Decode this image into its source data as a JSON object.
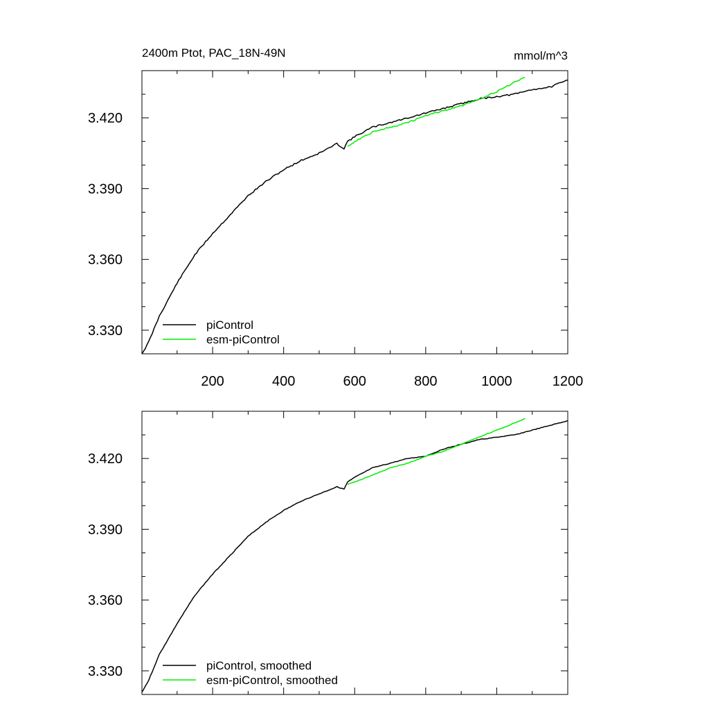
{
  "figure": {
    "title": "2400m Ptot, PAC_18N-49N",
    "units": "mmol/m^3",
    "colors": {
      "piControl": "#000000",
      "esm-piControl": "#00ee00"
    }
  },
  "chart_data": [
    {
      "type": "line",
      "title": "2400m Ptot, PAC_18N-49N",
      "units_label": "mmol/m^3",
      "xlabel": "",
      "ylabel": "",
      "xlim": [
        1,
        1200
      ],
      "ylim": [
        3.32,
        3.44
      ],
      "x_ticks": [
        200,
        400,
        600,
        800,
        1000,
        1200
      ],
      "x_tick_labels": [
        "200",
        "400",
        "600",
        "800",
        "1000",
        "1200"
      ],
      "y_ticks": [
        3.33,
        3.36,
        3.39,
        3.42
      ],
      "y_tick_labels": [
        "3.330",
        "3.360",
        "3.390",
        "3.420"
      ],
      "grid": false,
      "legend_position": "bottom-left",
      "legend": [
        "piControl",
        "esm-piControl"
      ],
      "series": [
        {
          "name": "piControl",
          "color": "#000000",
          "x": [
            1,
            20,
            50,
            100,
            150,
            200,
            250,
            300,
            350,
            400,
            450,
            500,
            550,
            570,
            580,
            600,
            650,
            700,
            750,
            800,
            850,
            900,
            950,
            1000,
            1050,
            1100,
            1150,
            1200
          ],
          "y": [
            3.32,
            3.325,
            3.336,
            3.35,
            3.362,
            3.371,
            3.379,
            3.387,
            3.393,
            3.398,
            3.402,
            3.405,
            3.409,
            3.407,
            3.41,
            3.412,
            3.416,
            3.418,
            3.42,
            3.422,
            3.424,
            3.426,
            3.428,
            3.429,
            3.43,
            3.432,
            3.433,
            3.436
          ]
        },
        {
          "name": "esm-piControl",
          "color": "#00ee00",
          "x": [
            580,
            600,
            650,
            700,
            750,
            800,
            850,
            900,
            950,
            1000,
            1050,
            1080
          ],
          "y": [
            3.408,
            3.41,
            3.414,
            3.416,
            3.418,
            3.421,
            3.423,
            3.425,
            3.428,
            3.431,
            3.435,
            3.437
          ]
        }
      ]
    },
    {
      "type": "line",
      "title": "",
      "xlabel": "",
      "ylabel": "",
      "xlim": [
        1,
        1200
      ],
      "ylim": [
        3.32,
        3.44
      ],
      "y_ticks": [
        3.33,
        3.36,
        3.39,
        3.42
      ],
      "y_tick_labels": [
        "3.330",
        "3.360",
        "3.390",
        "3.420"
      ],
      "grid": false,
      "legend_position": "bottom-left",
      "legend": [
        "piControl, smoothed",
        "esm-piControl, smoothed"
      ],
      "series": [
        {
          "name": "piControl, smoothed",
          "color": "#000000",
          "x": [
            1,
            20,
            50,
            100,
            150,
            200,
            250,
            300,
            350,
            400,
            450,
            500,
            550,
            570,
            580,
            600,
            650,
            700,
            750,
            800,
            850,
            900,
            950,
            1000,
            1050,
            1100,
            1150,
            1200
          ],
          "y": [
            3.321,
            3.326,
            3.337,
            3.35,
            3.362,
            3.371,
            3.379,
            3.387,
            3.393,
            3.398,
            3.402,
            3.405,
            3.408,
            3.407,
            3.41,
            3.412,
            3.416,
            3.418,
            3.42,
            3.421,
            3.424,
            3.426,
            3.428,
            3.429,
            3.43,
            3.432,
            3.434,
            3.436
          ]
        },
        {
          "name": "esm-piControl, smoothed",
          "color": "#00ee00",
          "x": [
            580,
            600,
            650,
            700,
            750,
            800,
            850,
            900,
            950,
            1000,
            1050,
            1080
          ],
          "y": [
            3.409,
            3.41,
            3.413,
            3.416,
            3.418,
            3.421,
            3.423,
            3.426,
            3.429,
            3.432,
            3.435,
            3.437
          ]
        }
      ]
    }
  ]
}
